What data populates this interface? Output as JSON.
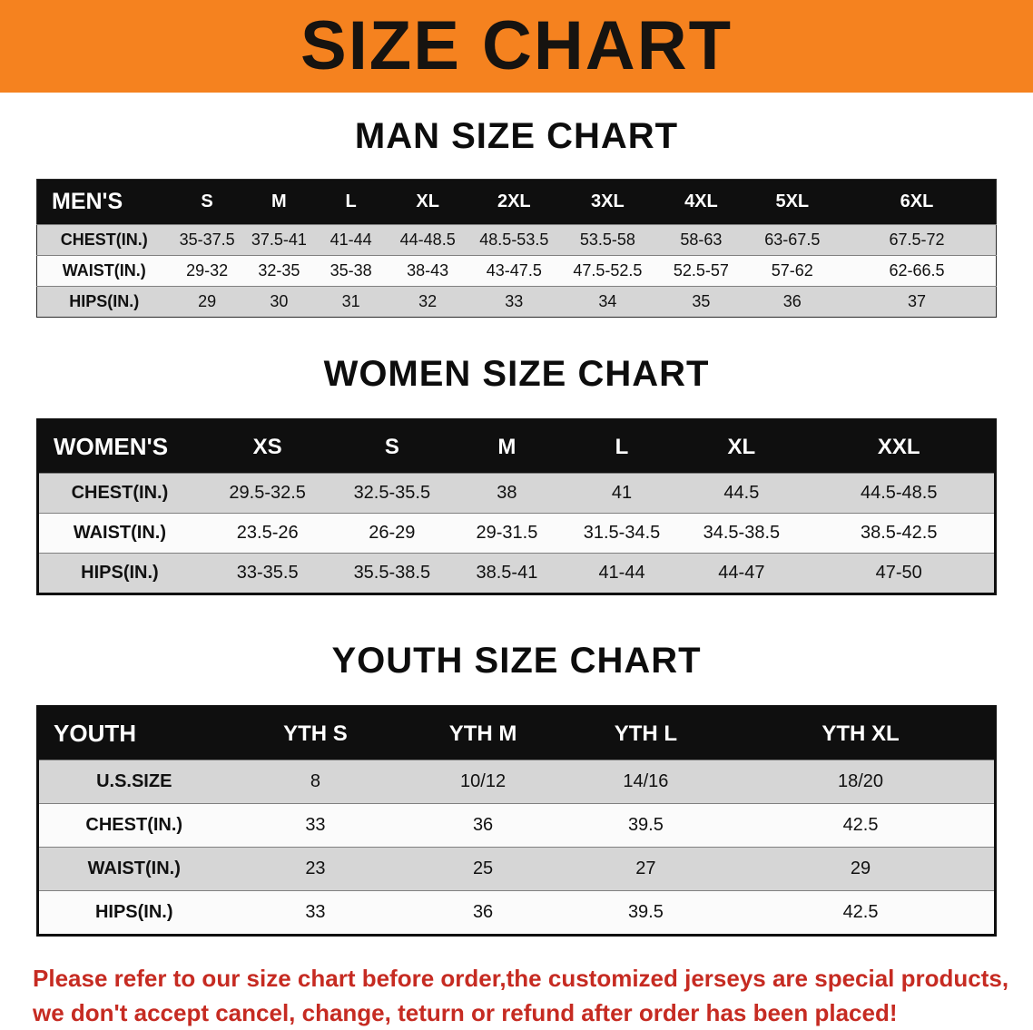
{
  "banner": {
    "title": "SIZE CHART",
    "bg_color": "#F5821F",
    "text_color": "#161310"
  },
  "chart_data": [
    {
      "type": "table",
      "title": "MAN SIZE CHART",
      "columns": [
        "MEN'S",
        "S",
        "M",
        "L",
        "XL",
        "2XL",
        "3XL",
        "4XL",
        "5XL",
        "6XL"
      ],
      "rows": [
        [
          "CHEST(IN.)",
          "35-37.5",
          "37.5-41",
          "41-44",
          "44-48.5",
          "48.5-53.5",
          "53.5-58",
          "58-63",
          "63-67.5",
          "67.5-72"
        ],
        [
          "WAIST(IN.)",
          "29-32",
          "32-35",
          "35-38",
          "38-43",
          "43-47.5",
          "47.5-52.5",
          "52.5-57",
          "57-62",
          "62-66.5"
        ],
        [
          "HIPS(IN.)",
          "29",
          "30",
          "31",
          "32",
          "33",
          "34",
          "35",
          "36",
          "37"
        ]
      ]
    },
    {
      "type": "table",
      "title": "WOMEN SIZE CHART",
      "columns": [
        "WOMEN'S",
        "XS",
        "S",
        "M",
        "L",
        "XL",
        "XXL"
      ],
      "rows": [
        [
          "CHEST(IN.)",
          "29.5-32.5",
          "32.5-35.5",
          "38",
          "41",
          "44.5",
          "44.5-48.5"
        ],
        [
          "WAIST(IN.)",
          "23.5-26",
          "26-29",
          "29-31.5",
          "31.5-34.5",
          "34.5-38.5",
          "38.5-42.5"
        ],
        [
          "HIPS(IN.)",
          "33-35.5",
          "35.5-38.5",
          "38.5-41",
          "41-44",
          "44-47",
          "47-50"
        ]
      ]
    },
    {
      "type": "table",
      "title": "YOUTH SIZE CHART",
      "columns": [
        "YOUTH",
        "YTH S",
        "YTH M",
        "YTH L",
        "YTH XL"
      ],
      "rows": [
        [
          "U.S.SIZE",
          "8",
          "10/12",
          "14/16",
          "18/20"
        ],
        [
          "CHEST(IN.)",
          "33",
          "36",
          "39.5",
          "42.5"
        ],
        [
          "WAIST(IN.)",
          "23",
          "25",
          "27",
          "29"
        ],
        [
          "HIPS(IN.)",
          "33",
          "36",
          "39.5",
          "42.5"
        ]
      ]
    }
  ],
  "footer": {
    "line1": "Please refer to our size chart before order,the customized jerseys are special products,",
    "line2": "we don't accept cancel, change, teturn or refund after order has been placed!",
    "text_color": "#c62b22"
  }
}
